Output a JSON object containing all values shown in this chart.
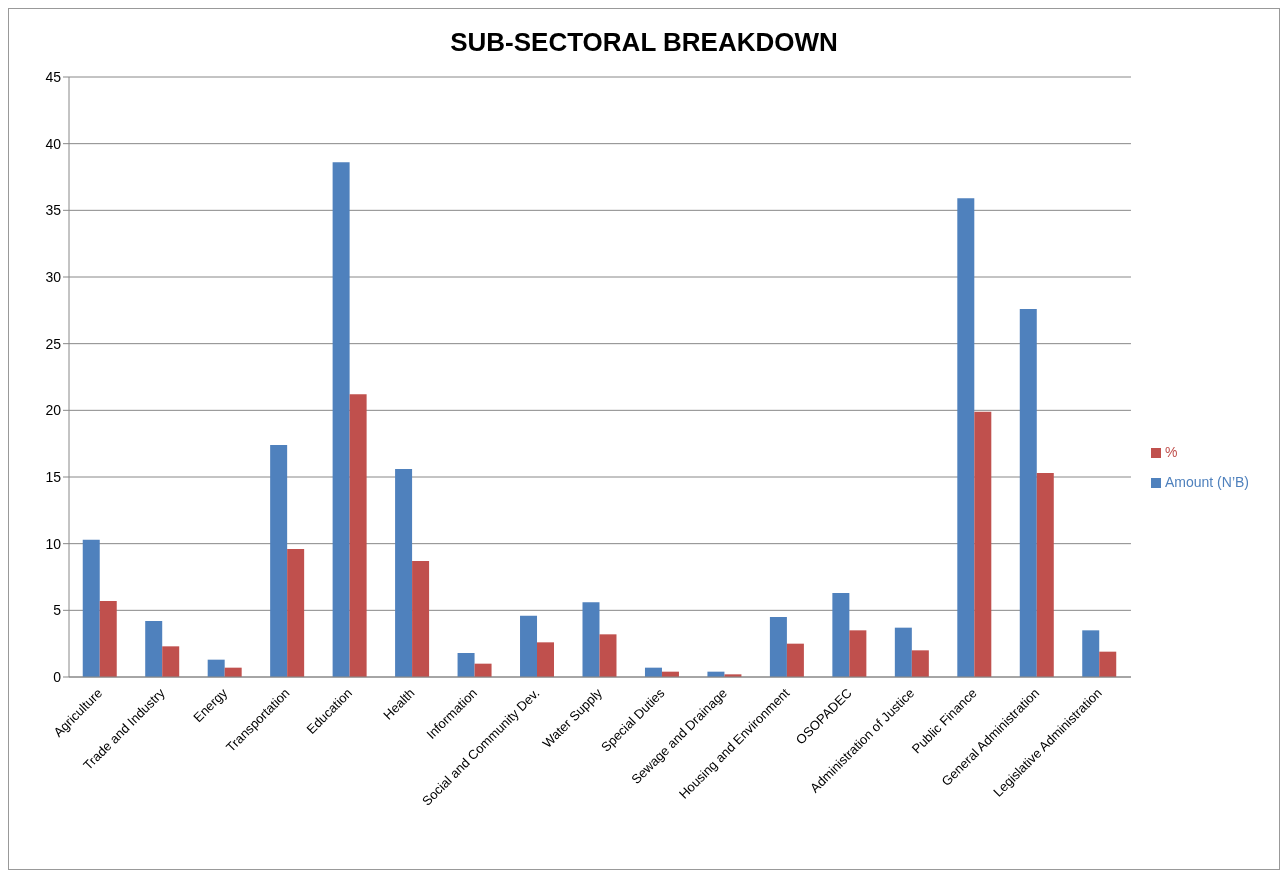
{
  "chart_data": {
    "type": "bar",
    "title": "SUB-SECTORAL BREAKDOWN",
    "categories": [
      "Agriculture",
      "Trade and Industry",
      "Energy",
      "Transportation",
      "Education",
      "Health",
      "Information",
      "Social and Community Dev.",
      "Water Supply",
      "Special Duties",
      "Sewage and Drainage",
      "Housing and Environment",
      "OSOPADEC",
      "Administration of Justice",
      "Public Finance",
      "General Administration",
      "Legislative Administration"
    ],
    "series": [
      {
        "name": "Amount (N’B)",
        "color": "#4f81bd",
        "values": [
          10.3,
          4.2,
          1.3,
          17.4,
          38.6,
          15.6,
          1.8,
          4.6,
          5.6,
          0.7,
          0.4,
          4.5,
          6.3,
          3.7,
          35.9,
          27.6,
          3.5
        ]
      },
      {
        "name": "%",
        "color": "#c0504d",
        "values": [
          5.7,
          2.3,
          0.7,
          9.6,
          21.2,
          8.7,
          1.0,
          2.6,
          3.2,
          0.4,
          0.2,
          2.5,
          3.5,
          2.0,
          19.9,
          15.3,
          1.9
        ]
      }
    ],
    "ylim": [
      0,
      45
    ],
    "yticks": [
      0,
      5,
      10,
      15,
      20,
      25,
      30,
      35,
      40,
      45
    ],
    "grid": "y",
    "legend": "right"
  }
}
